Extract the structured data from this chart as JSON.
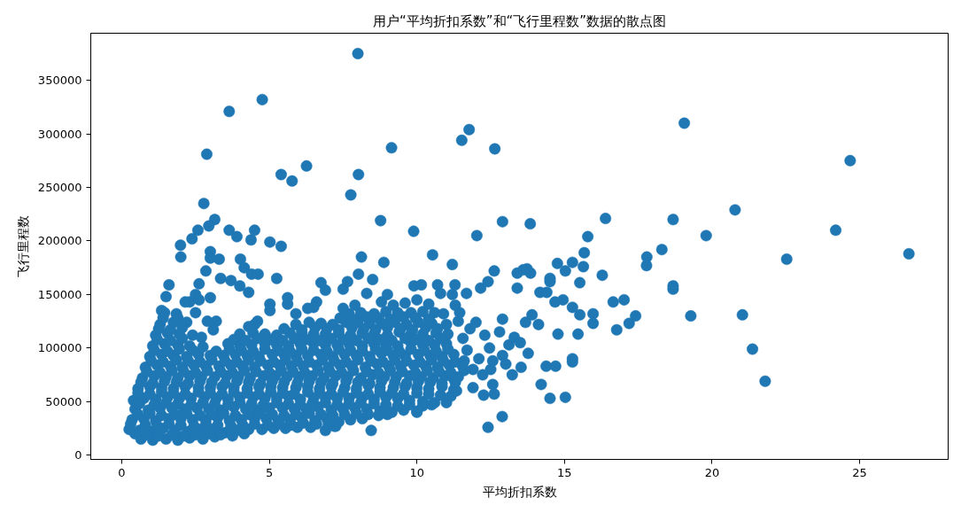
{
  "chart_data": {
    "type": "scatter",
    "title": "用户“平均折扣系数”和“飞行里程数”数据的散点图",
    "xlabel": "平均折扣系数",
    "ylabel": "飞行里程数",
    "color": "#1f77b4",
    "marker": "circle",
    "xlim": [
      -1.05,
      28.0
    ],
    "ylim": [
      -4000,
      394000
    ],
    "xticks": [
      0,
      5,
      10,
      15,
      20,
      25
    ],
    "yticks": [
      0,
      50000,
      100000,
      150000,
      200000,
      250000,
      300000,
      350000
    ],
    "x": [
      0.65,
      1.05,
      1.5,
      1.9,
      2.3,
      2.75,
      3.15,
      0.25,
      0.6,
      1.0,
      1.4,
      1.8,
      2.25,
      2.65,
      3.05,
      3.5,
      3.9,
      4.3,
      4.75,
      5.15,
      5.55,
      5.95,
      6.4,
      6.9,
      7.25,
      0.35,
      0.75,
      1.15,
      1.6,
      2.0,
      2.4,
      2.85,
      3.25,
      3.65,
      4.05,
      4.5,
      4.9,
      5.3,
      5.7,
      6.1,
      6.55,
      6.95,
      7.35,
      7.75,
      8.15,
      8.45,
      0.45,
      0.9,
      1.3,
      1.7,
      2.1,
      2.55,
      2.95,
      3.35,
      3.8,
      4.2,
      4.6,
      5.0,
      5.45,
      5.85,
      6.25,
      6.65,
      7.1,
      7.5,
      7.9,
      8.3,
      8.75,
      9.15,
      9.55,
      10.0,
      0.4,
      0.75,
      1.15,
      1.55,
      1.95,
      2.35,
      2.8,
      3.2,
      3.6,
      4.0,
      4.45,
      4.85,
      5.25,
      5.65,
      6.05,
      6.5,
      6.9,
      7.3,
      7.7,
      8.15,
      8.55,
      8.95,
      9.35,
      9.75,
      10.2,
      10.6,
      11.0,
      0.55,
      0.95,
      1.35,
      1.75,
      2.15,
      2.6,
      3.0,
      3.4,
      3.8,
      4.25,
      4.65,
      5.05,
      5.45,
      5.9,
      6.3,
      6.7,
      7.1,
      7.55,
      7.95,
      8.35,
      8.75,
      9.2,
      9.6,
      10.0,
      10.4,
      10.85,
      11.25,
      0.7,
      1.1,
      1.5,
      1.9,
      2.3,
      2.7,
      3.15,
      3.55,
      3.95,
      4.35,
      4.8,
      5.2,
      5.6,
      6.0,
      6.45,
      6.85,
      7.25,
      7.65,
      8.1,
      8.5,
      8.9,
      9.3,
      9.75,
      10.15,
      10.55,
      10.95,
      11.4,
      0.8,
      1.2,
      1.65,
      2.05,
      2.45,
      2.85,
      3.3,
      3.7,
      4.1,
      4.5,
      4.95,
      5.35,
      5.75,
      6.15,
      6.6,
      7.0,
      7.4,
      7.8,
      8.25,
      8.65,
      9.05,
      9.45,
      9.9,
      10.3,
      10.7,
      11.1,
      11.55,
      0.95,
      1.35,
      1.75,
      2.2,
      2.6,
      3.0,
      3.45,
      3.85,
      4.25,
      4.65,
      5.1,
      5.5,
      5.9,
      6.3,
      6.75,
      7.15,
      7.55,
      7.95,
      8.4,
      8.8,
      9.2,
      9.6,
      10.05,
      10.45,
      10.85,
      11.25,
      1.05,
      1.45,
      1.9,
      2.3,
      2.75,
      3.6,
      4.0,
      4.4,
      4.85,
      5.25,
      5.65,
      6.05,
      6.5,
      6.9,
      7.3,
      7.7,
      8.15,
      8.55,
      8.95,
      9.35,
      9.8,
      10.2,
      10.6,
      11.0,
      1.15,
      1.55,
      1.95,
      2.4,
      4.0,
      4.45,
      4.85,
      5.25,
      5.7,
      6.1,
      6.5,
      6.9,
      7.35,
      7.75,
      8.15,
      8.55,
      9.0,
      9.4,
      9.8,
      10.2,
      10.65,
      11.05,
      1.3,
      1.75,
      2.2,
      4.6,
      5.9,
      6.35,
      6.75,
      7.15,
      7.6,
      8.0,
      8.4,
      8.8,
      9.25,
      9.65,
      10.05,
      10.5,
      1.45,
      1.85,
      6.3,
      7.7,
      8.1,
      8.55,
      8.95,
      9.35,
      9.8,
      10.2,
      10.6,
      8.0,
      4.76,
      3.64,
      11.77,
      11.52,
      9.14,
      12.64,
      2.88,
      6.26,
      5.4,
      8.02,
      5.77,
      7.76,
      2.78,
      8.77,
      9.89,
      12.9,
      12.03,
      13.84,
      3.15,
      2.95,
      2.58,
      2.38,
      1.99,
      3.64,
      3.9,
      4.5,
      4.38,
      5.02,
      5.4,
      3.0,
      10.53,
      8.12,
      19.06,
      24.68,
      20.78,
      16.39,
      18.68,
      15.79,
      19.8,
      24.19,
      18.3,
      15.67,
      17.79,
      22.53,
      26.67,
      17.78,
      18.68,
      18.68,
      19.28,
      21.03,
      21.37,
      21.8,
      16.28,
      16.65,
      17.02,
      17.41,
      17.19,
      16.77,
      15.64,
      15.52,
      15.97,
      15.97,
      15.27,
      15.52,
      15.46,
      15.27,
      15.27,
      15.03,
      14.51,
      14.21,
      12.89,
      12.41,
      14.78,
      13.77,
      14.38,
      14.7,
      13.53,
      13.23,
      12.62,
      12.26,
      14.76,
      15.03,
      15.27,
      14.51,
      14.51,
      13.73,
      13.4,
      13.85,
      12.62,
      11.2,
      13.4,
      14.17,
      14.4,
      12.41,
      11.29,
      12.16,
      11.68,
      14.68,
      14.95,
      14.12,
      13.68,
      13.9,
      12.9,
      13.01,
      12.57,
      11.9,
      11.34,
      11.23,
      12.23,
      12.57,
      13.12,
      12.46,
      11.56,
      12.0,
      11.45,
      1.35,
      1.5,
      1.6,
      2.0,
      2.3,
      2.5,
      2.62,
      2.85,
      3.0,
      3.3,
      3.0,
      3.35,
      3.7,
      4.0,
      4.02,
      4.15,
      4.4,
      4.62,
      4.3,
      5.25,
      5.02,
      5.02,
      5.62,
      5.62,
      4.5,
      6.6,
      6.75,
      6.9,
      7.5,
      7.65,
      8.02,
      8.5,
      8.88,
      8.3,
      7.5,
      7.9,
      9.0,
      9.9,
      10.15,
      10.7,
      10.8,
      11.2,
      13.6,
      9.0,
      10.0,
      10.5,
      7.2,
      2.15,
      2.5,
      2.62,
      1.9,
      2.9,
      3.2,
      3.1,
      2.7,
      4.3,
      5.9,
      6.5,
      11.0,
      11.4,
      10.9,
      11.3,
      10.4,
      10.0,
      9.6,
      9.2,
      8.8,
      11.8,
      12.3,
      12.8,
      13.3,
      12.9,
      13.5,
      11.7,
      12.1,
      11.9,
      12.5,
      11.6,
      0.45,
      0.85,
      1.25,
      1.7,
      2.1,
      2.5,
      2.95,
      3.35,
      3.75,
      4.15,
      0.3,
      0.8,
      1.2,
      1.6,
      2.0,
      2.45,
      2.85,
      3.25,
      3.7,
      4.1,
      4.5,
      4.95,
      5.35,
      5.75,
      6.15,
      6.6,
      7.0,
      0.55,
      0.95,
      1.35,
      1.8,
      2.2,
      2.65,
      3.05,
      3.45,
      3.85,
      4.3,
      4.7,
      5.1,
      5.5,
      5.9,
      6.35,
      6.75,
      7.15,
      7.55,
      7.95,
      8.35,
      8.7,
      0.6,
      1.1,
      1.5,
      1.9,
      2.35,
      2.75,
      3.15,
      3.6,
      4.0,
      4.4,
      4.8,
      5.25,
      5.65,
      6.05,
      6.45,
      6.9,
      7.3,
      7.7,
      8.1,
      8.55,
      8.95,
      9.35,
      9.75,
      10.2,
      0.55,
      0.95,
      1.35,
      1.75,
      2.15,
      2.6,
      3.0,
      3.4,
      3.8,
      4.25,
      4.65,
      5.05,
      5.45,
      5.85,
      6.3,
      6.7,
      7.1,
      7.5,
      7.95,
      8.35,
      8.75,
      9.15,
      9.55,
      10.0,
      10.4,
      10.8,
      11.15,
      0.65,
      1.05,
      1.45,
      1.85,
      2.25,
      2.65,
      3.05,
      3.5,
      3.9,
      4.3,
      4.7,
      5.1,
      5.5,
      5.95,
      6.35,
      6.75,
      7.15,
      7.6,
      8.0,
      8.4,
      8.8,
      9.25,
      9.65,
      10.05,
      10.45,
      10.85,
      11.3,
      0.85,
      1.3,
      1.7,
      2.1,
      2.5,
      2.9,
      3.35,
      3.75,
      4.15,
      4.55,
      5.0,
      5.4,
      5.8,
      6.2,
      6.65,
      7.05,
      7.45,
      7.85,
      8.3,
      8.7,
      9.1,
      9.5,
      9.95,
      10.35,
      10.75,
      11.15,
      11.6,
      1.0,
      1.4,
      1.85,
      2.25,
      2.65,
      3.05,
      3.5,
      3.9,
      4.3,
      4.7,
      5.15,
      5.55,
      5.95,
      6.35,
      6.8,
      7.2,
      7.6,
      8.0,
      8.45,
      8.85,
      9.25,
      9.65,
      10.1,
      10.5,
      10.9,
      11.3,
      1.1,
      1.55,
      1.95,
      2.4,
      3.2,
      3.65,
      4.05,
      4.45,
      4.85,
      5.3,
      5.7,
      6.1,
      6.5,
      6.95,
      7.35,
      7.75,
      8.15,
      8.6,
      9.0,
      9.4,
      9.8,
      10.25,
      10.65,
      11.05,
      1.2,
      1.65,
      2.05,
      3.8,
      4.2,
      4.6,
      5.05,
      5.45,
      5.85,
      6.25,
      6.7,
      7.1,
      7.5,
      7.95,
      8.35,
      8.75,
      9.15,
      9.6,
      10.0,
      10.4,
      10.8,
      1.25,
      1.65,
      2.05,
      5.5,
      6.1,
      6.55,
      6.95,
      7.35,
      7.8,
      8.2,
      8.6,
      9.0,
      9.45,
      9.85,
      10.3,
      10.7,
      1.4,
      7.4,
      7.85,
      8.3,
      8.7,
      9.1,
      9.55,
      9.95,
      10.4
    ],
    "values": [
      15000,
      14000,
      15000,
      14000,
      16000,
      15000,
      17000,
      24000,
      23000,
      22000,
      25000,
      23000,
      22000,
      24000,
      24000,
      21000,
      23000,
      24000,
      24000,
      25000,
      25000,
      26000,
      26000,
      23000,
      27000,
      33000,
      34000,
      32000,
      34000,
      34000,
      33000,
      33000,
      35000,
      32000,
      33000,
      34000,
      34000,
      32000,
      33000,
      35000,
      32000,
      34000,
      31000,
      33000,
      34000,
      23000,
      43000,
      42000,
      44000,
      44000,
      43000,
      44000,
      43000,
      42000,
      45000,
      43000,
      42000,
      44000,
      44000,
      43000,
      43000,
      45000,
      42000,
      43000,
      44000,
      43000,
      41000,
      40000,
      42000,
      41000,
      51000,
      53000,
      52000,
      54000,
      53000,
      53000,
      54000,
      53000,
      52000,
      54000,
      54000,
      53000,
      53000,
      55000,
      52000,
      53000,
      54000,
      53000,
      53000,
      54000,
      52000,
      54000,
      53000,
      51000,
      50000,
      49000,
      49000,
      62000,
      64000,
      63000,
      62000,
      64000,
      63000,
      63000,
      64000,
      63000,
      62000,
      64000,
      64000,
      63000,
      63000,
      64000,
      62000,
      64000,
      63000,
      62000,
      65000,
      63000,
      63000,
      64000,
      63000,
      62000,
      64000,
      61000,
      72000,
      74000,
      73000,
      72000,
      74000,
      73000,
      73000,
      74000,
      73000,
      72000,
      74000,
      74000,
      73000,
      73000,
      74000,
      72000,
      74000,
      73000,
      72000,
      75000,
      73000,
      73000,
      74000,
      73000,
      72000,
      74000,
      73000,
      82000,
      84000,
      83000,
      82000,
      84000,
      83000,
      83000,
      84000,
      83000,
      82000,
      84000,
      84000,
      83000,
      83000,
      84000,
      82000,
      84000,
      83000,
      82000,
      85000,
      83000,
      83000,
      84000,
      83000,
      82000,
      84000,
      83000,
      92000,
      94000,
      93000,
      92000,
      94000,
      93000,
      93000,
      94000,
      93000,
      92000,
      94000,
      94000,
      93000,
      93000,
      94000,
      92000,
      94000,
      93000,
      92000,
      95000,
      93000,
      93000,
      94000,
      93000,
      92000,
      94000,
      102000,
      104000,
      103000,
      102000,
      101000,
      104000,
      103000,
      103000,
      104000,
      103000,
      102000,
      104000,
      104000,
      103000,
      103000,
      104000,
      102000,
      104000,
      103000,
      102000,
      105000,
      103000,
      103000,
      104000,
      112000,
      114000,
      113000,
      112000,
      113000,
      114000,
      113000,
      112000,
      114000,
      114000,
      113000,
      113000,
      114000,
      112000,
      114000,
      113000,
      112000,
      115000,
      113000,
      113000,
      114000,
      113000,
      122000,
      124000,
      124000,
      125000,
      122000,
      124000,
      123000,
      122000,
      124000,
      124000,
      123000,
      123000,
      124000,
      122000,
      124000,
      123000,
      133000,
      132000,
      137000,
      132000,
      133000,
      132000,
      134000,
      133000,
      133000,
      134000,
      133000,
      375000,
      332000,
      321000,
      304000,
      294000,
      287000,
      286000,
      281000,
      270000,
      262000,
      262000,
      256000,
      243000,
      235000,
      219000,
      209000,
      218000,
      205000,
      216000,
      220000,
      214000,
      210000,
      202000,
      196000,
      210000,
      204000,
      210000,
      201000,
      199000,
      195000,
      190000,
      187000,
      185000,
      310000,
      275000,
      229000,
      221000,
      220000,
      204000,
      205000,
      210000,
      192000,
      189000,
      185000,
      183000,
      188000,
      177000,
      158000,
      155000,
      130000,
      131000,
      99000,
      69000,
      168000,
      143000,
      145000,
      130000,
      123000,
      117000,
      176000,
      161000,
      132000,
      123000,
      138000,
      131000,
      113000,
      90000,
      87000,
      54000,
      53000,
      66000,
      36000,
      26000,
      113000,
      95000,
      83000,
      83000,
      82000,
      75000,
      57000,
      56000,
      179000,
      172000,
      180000,
      165000,
      162000,
      174000,
      170000,
      170000,
      172000,
      178000,
      156000,
      152000,
      152000,
      162000,
      159000,
      156000,
      151000,
      143000,
      145000,
      122000,
      124000,
      131000,
      127000,
      85000,
      66000,
      63000,
      60000,
      72000,
      75000,
      88000,
      103000,
      100000,
      109000,
      124000,
      133000,
      135000,
      148000,
      159000,
      185000,
      143000,
      150000,
      160000,
      172000,
      184000,
      183000,
      147000,
      165000,
      163000,
      158000,
      183000,
      175000,
      169000,
      169000,
      152000,
      165000,
      141000,
      135000,
      147000,
      141000,
      122000,
      143000,
      161000,
      154000,
      155000,
      162000,
      169000,
      164000,
      180000,
      151000,
      137000,
      140000,
      150000,
      158000,
      159000,
      159000,
      151000,
      150000,
      173000,
      38000,
      40000,
      47000,
      27000,
      143000,
      133000,
      145000,
      128000,
      125000,
      125000,
      117000,
      110000,
      120000,
      132000,
      138000,
      122000,
      125000,
      132000,
      140000,
      141000,
      145000,
      142000,
      140000,
      143000,
      118000,
      112000,
      115000,
      110000,
      93000,
      105000,
      98000,
      90000,
      80000,
      80000,
      88000,
      20000,
      19000,
      18000,
      19000,
      18000,
      19000,
      20000,
      19000,
      18000,
      20000,
      29000,
      28000,
      27000,
      29000,
      28000,
      27000,
      29000,
      28000,
      27000,
      28000,
      29000,
      28000,
      29000,
      28000,
      30000,
      29000,
      29000,
      38000,
      39000,
      37000,
      38000,
      39000,
      37000,
      38000,
      39000,
      37000,
      38000,
      39000,
      38000,
      37000,
      38000,
      39000,
      38000,
      37000,
      38000,
      39000,
      38000,
      37000,
      48000,
      47000,
      49000,
      48000,
      47000,
      49000,
      48000,
      47000,
      49000,
      48000,
      47000,
      49000,
      48000,
      47000,
      48000,
      49000,
      47000,
      48000,
      49000,
      48000,
      47000,
      46000,
      47000,
      46000,
      58000,
      57000,
      59000,
      58000,
      57000,
      59000,
      58000,
      57000,
      59000,
      58000,
      57000,
      59000,
      58000,
      57000,
      59000,
      58000,
      57000,
      59000,
      58000,
      57000,
      59000,
      58000,
      57000,
      58000,
      57000,
      56000,
      55000,
      68000,
      67000,
      69000,
      68000,
      67000,
      69000,
      68000,
      67000,
      69000,
      68000,
      67000,
      69000,
      68000,
      67000,
      69000,
      68000,
      67000,
      69000,
      68000,
      67000,
      69000,
      68000,
      67000,
      69000,
      68000,
      67000,
      68000,
      78000,
      77000,
      79000,
      78000,
      77000,
      79000,
      78000,
      77000,
      79000,
      78000,
      77000,
      79000,
      78000,
      77000,
      79000,
      78000,
      77000,
      79000,
      78000,
      77000,
      79000,
      78000,
      77000,
      79000,
      78000,
      77000,
      79000,
      88000,
      87000,
      89000,
      88000,
      87000,
      89000,
      88000,
      87000,
      89000,
      88000,
      87000,
      89000,
      88000,
      87000,
      89000,
      88000,
      87000,
      89000,
      88000,
      87000,
      89000,
      88000,
      87000,
      89000,
      88000,
      87000,
      98000,
      97000,
      99000,
      98000,
      97000,
      99000,
      98000,
      97000,
      99000,
      98000,
      97000,
      99000,
      98000,
      97000,
      99000,
      98000,
      97000,
      99000,
      98000,
      97000,
      99000,
      98000,
      97000,
      99000,
      108000,
      107000,
      109000,
      108000,
      107000,
      109000,
      108000,
      107000,
      109000,
      108000,
      107000,
      109000,
      108000,
      107000,
      109000,
      108000,
      107000,
      109000,
      108000,
      107000,
      109000,
      118000,
      117000,
      119000,
      118000,
      117000,
      119000,
      118000,
      117000,
      119000,
      118000,
      117000,
      119000,
      118000,
      117000,
      119000,
      118000,
      128000,
      128000,
      127000,
      129000,
      128000,
      127000,
      129000,
      128000,
      127000
    ]
  }
}
